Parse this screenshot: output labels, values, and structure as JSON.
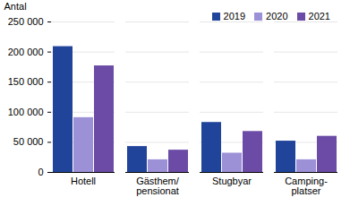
{
  "chart_data": {
    "type": "bar",
    "y_label": "Antal",
    "categories": [
      "Hotell",
      "Gästhem/\npensionat",
      "Stugbyar",
      "Camping-\nplatser"
    ],
    "series": [
      {
        "name": "2019",
        "color": "#21449b",
        "values": [
          209000,
          43000,
          83000,
          52000
        ]
      },
      {
        "name": "2020",
        "color": "#9c90d7",
        "values": [
          91000,
          21000,
          32000,
          21000
        ]
      },
      {
        "name": "2021",
        "color": "#6b4ba6",
        "values": [
          177000,
          37000,
          68000,
          60000
        ]
      }
    ],
    "ylim": [
      0,
      250000
    ],
    "yticks": [
      0,
      {
        "value": 50000,
        "label": "50 000"
      },
      {
        "value": 100000,
        "label": "100 000"
      },
      {
        "value": 150000,
        "label": "150 000"
      },
      {
        "value": 200000,
        "label": "200 000"
      },
      {
        "value": 250000,
        "label": "250 000"
      }
    ],
    "grid": true,
    "legend": "top-right"
  }
}
